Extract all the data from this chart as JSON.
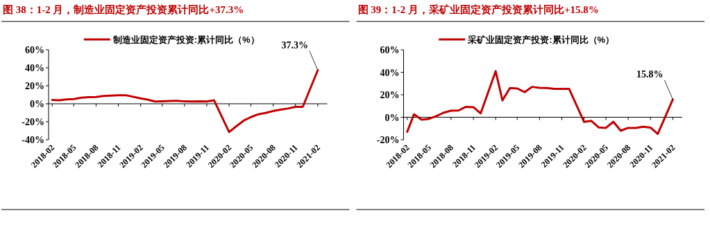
{
  "chart_data": [
    {
      "type": "line",
      "title": "图 38：1-2 月，制造业固定资产投资累计同比+37.3%",
      "legend": "top",
      "x": [
        "2018-02",
        "2018-03",
        "2018-04",
        "2018-05",
        "2018-06",
        "2018-07",
        "2018-08",
        "2018-09",
        "2018-10",
        "2018-11",
        "2018-12",
        "2019-02",
        "2019-03",
        "2019-04",
        "2019-05",
        "2019-06",
        "2019-07",
        "2019-08",
        "2019-09",
        "2019-10",
        "2019-11",
        "2019-12",
        "2020-02",
        "2020-03",
        "2020-04",
        "2020-05",
        "2020-06",
        "2020-07",
        "2020-08",
        "2020-09",
        "2020-10",
        "2020-11",
        "2020-12",
        "2021-02"
      ],
      "series": [
        {
          "name": "制造业固定资产投资:累计同比（%）",
          "color": "#c00000",
          "values": [
            4.3,
            3.8,
            4.8,
            5.2,
            6.8,
            7.3,
            7.5,
            8.7,
            9.1,
            9.5,
            9.5,
            5.9,
            4.6,
            2.5,
            2.7,
            3.0,
            3.3,
            2.6,
            2.5,
            2.6,
            2.5,
            3.8,
            -31.5,
            -25.2,
            -18.8,
            -14.8,
            -11.7,
            -10.2,
            -8.1,
            -6.5,
            -5.3,
            -3.5,
            -3.5,
            37.3
          ]
        }
      ],
      "xlim": [
        "2018-01-17",
        "2021-03-12"
      ],
      "xticks": [
        "2018-02",
        "2018-05",
        "2018-08",
        "2018-11",
        "2019-02",
        "2019-05",
        "2019-08",
        "2019-11",
        "2020-02",
        "2020-05",
        "2020-08",
        "2020-11",
        "2021-02"
      ],
      "ylim": [
        -40,
        60
      ],
      "yticks": [
        {
          "value": -40,
          "label": "-40%"
        },
        {
          "value": -20,
          "label": "-20%"
        },
        {
          "value": 0,
          "label": "0%"
        },
        {
          "value": 20,
          "label": "20%"
        },
        {
          "value": 40,
          "label": "40%"
        },
        {
          "value": 60,
          "label": "60%"
        }
      ],
      "annotations": [
        {
          "text": "37.3%",
          "x": "2021-02",
          "y": 37.3
        }
      ]
    },
    {
      "type": "line",
      "title": "图 39：1-2 月，采矿业固定资产投资累计同比+15.8%",
      "legend": "top",
      "x": [
        "2018-02",
        "2018-03",
        "2018-04",
        "2018-05",
        "2018-06",
        "2018-07",
        "2018-08",
        "2018-09",
        "2018-10",
        "2018-11",
        "2018-12",
        "2019-02",
        "2019-03",
        "2019-04",
        "2019-05",
        "2019-06",
        "2019-07",
        "2019-08",
        "2019-09",
        "2019-10",
        "2019-11",
        "2019-12",
        "2020-02",
        "2020-03",
        "2020-04",
        "2020-05",
        "2020-06",
        "2020-07",
        "2020-08",
        "2020-09",
        "2020-10",
        "2020-11",
        "2020-12",
        "2021-02"
      ],
      "series": [
        {
          "name": "采矿业固定资产投资:累计同比（%）",
          "color": "#c00000",
          "values": [
            -13,
            2.6,
            -2.2,
            -1.5,
            1,
            4,
            5.8,
            6,
            9.3,
            9,
            3.4,
            41,
            15,
            26,
            25.6,
            22.3,
            27,
            26.2,
            26,
            25.2,
            25.3,
            25.3,
            -4.2,
            -3.2,
            -9,
            -9.5,
            -4,
            -12,
            -9.5,
            -9.6,
            -8.5,
            -9.2,
            -14.9,
            15.8
          ]
        }
      ],
      "xlim": [
        "2018-01-17",
        "2021-03-12"
      ],
      "xticks": [
        "2018-02",
        "2018-05",
        "2018-08",
        "2018-11",
        "2019-02",
        "2019-05",
        "2019-08",
        "2019-11",
        "2020-02",
        "2020-05",
        "2020-08",
        "2020-11",
        "2021-02"
      ],
      "ylim": [
        -20,
        60
      ],
      "yticks": [
        {
          "value": -20,
          "label": "-20%"
        },
        {
          "value": 0,
          "label": "0%"
        },
        {
          "value": 20,
          "label": "20%"
        },
        {
          "value": 40,
          "label": "40%"
        },
        {
          "value": 60,
          "label": "60%"
        }
      ],
      "annotations": [
        {
          "text": "15.8%",
          "x": "2021-02",
          "y": 15.8
        }
      ]
    }
  ]
}
